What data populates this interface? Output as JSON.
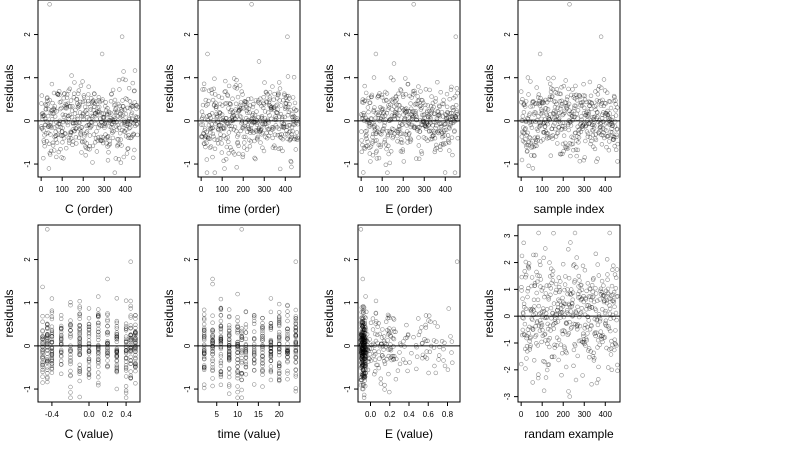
{
  "chart_data": [
    {
      "type": "scatter",
      "xlabel": "C (order)",
      "ylabel": "residuals",
      "xlim": [
        -15,
        470
      ],
      "ylim": [
        -1.3,
        2.8
      ],
      "xticks": [
        0,
        100,
        200,
        300,
        400
      ],
      "yticks": [
        -1,
        0,
        1,
        2
      ],
      "hline": 0,
      "y_outliers": [
        2.7,
        1.55,
        1.95
      ],
      "n_points": 460
    },
    {
      "type": "scatter",
      "xlabel": "time (order)",
      "ylabel": "residuals",
      "xlim": [
        -15,
        470
      ],
      "ylim": [
        -1.3,
        2.8
      ],
      "xticks": [
        0,
        100,
        200,
        300,
        400
      ],
      "yticks": [
        -1,
        0,
        1,
        2
      ],
      "hline": 0,
      "y_outliers": [
        2.7,
        1.55,
        1.95
      ],
      "n_points": 460
    },
    {
      "type": "scatter",
      "xlabel": "E (order)",
      "ylabel": "residuals",
      "xlim": [
        -15,
        470
      ],
      "ylim": [
        -1.3,
        2.8
      ],
      "xticks": [
        0,
        100,
        200,
        300,
        400
      ],
      "yticks": [
        -1,
        0,
        1,
        2
      ],
      "hline": 0,
      "y_outliers": [
        2.7,
        1.55,
        1.95
      ],
      "n_points": 460
    },
    {
      "type": "scatter",
      "xlabel": "sample index",
      "ylabel": "residuals",
      "xlim": [
        -15,
        470
      ],
      "ylim": [
        -1.3,
        2.8
      ],
      "xticks": [
        0,
        100,
        200,
        300,
        400
      ],
      "yticks": [
        -1,
        0,
        1,
        2
      ],
      "hline": 0,
      "y_outliers": [
        2.7,
        1.55,
        1.95
      ],
      "n_points": 460
    },
    {
      "type": "scatter",
      "xlabel": "C (value)",
      "ylabel": "residuals",
      "xlim": [
        -0.55,
        0.55
      ],
      "ylim": [
        -1.3,
        2.8
      ],
      "xticks": [
        -0.4,
        0.0,
        0.2,
        0.4
      ],
      "xtick_labels": [
        "-0.4",
        "0.0",
        "0.2",
        "0.4"
      ],
      "yticks": [
        -1,
        0,
        1,
        2
      ],
      "hline": 0,
      "x_levels": [
        -0.5,
        -0.45,
        -0.4,
        -0.3,
        -0.2,
        -0.1,
        0.0,
        0.1,
        0.2,
        0.3,
        0.4,
        0.45,
        0.5
      ],
      "n_points": 460
    },
    {
      "type": "scatter",
      "xlabel": "time (value)",
      "ylabel": "residuals",
      "xlim": [
        0.5,
        25
      ],
      "ylim": [
        -1.3,
        2.8
      ],
      "xticks": [
        5,
        10,
        15,
        20
      ],
      "yticks": [
        -1,
        0,
        1,
        2
      ],
      "hline": 0,
      "x_levels": [
        2,
        4,
        6,
        8,
        10,
        11,
        12,
        14,
        16,
        18,
        20,
        22,
        24
      ],
      "n_points": 460
    },
    {
      "type": "scatter",
      "xlabel": "E (value)",
      "ylabel": "residuals",
      "xlim": [
        -0.13,
        0.93
      ],
      "ylim": [
        -1.3,
        2.8
      ],
      "xticks": [
        0.0,
        0.2,
        0.4,
        0.6,
        0.8
      ],
      "xtick_labels": [
        "0.0",
        "0.2",
        "0.4",
        "0.6",
        "0.8"
      ],
      "yticks": [
        -1,
        0,
        1,
        2
      ],
      "hline": 0,
      "n_points": 460
    },
    {
      "type": "scatter",
      "xlabel": "randam example",
      "ylabel": "residuals",
      "xlim": [
        -15,
        470
      ],
      "ylim": [
        -3.2,
        3.4
      ],
      "xticks": [
        0,
        100,
        200,
        300,
        400
      ],
      "yticks": [
        -3,
        -2,
        -1,
        0,
        1,
        2,
        3
      ],
      "hline": 0,
      "n_points": 460
    }
  ]
}
